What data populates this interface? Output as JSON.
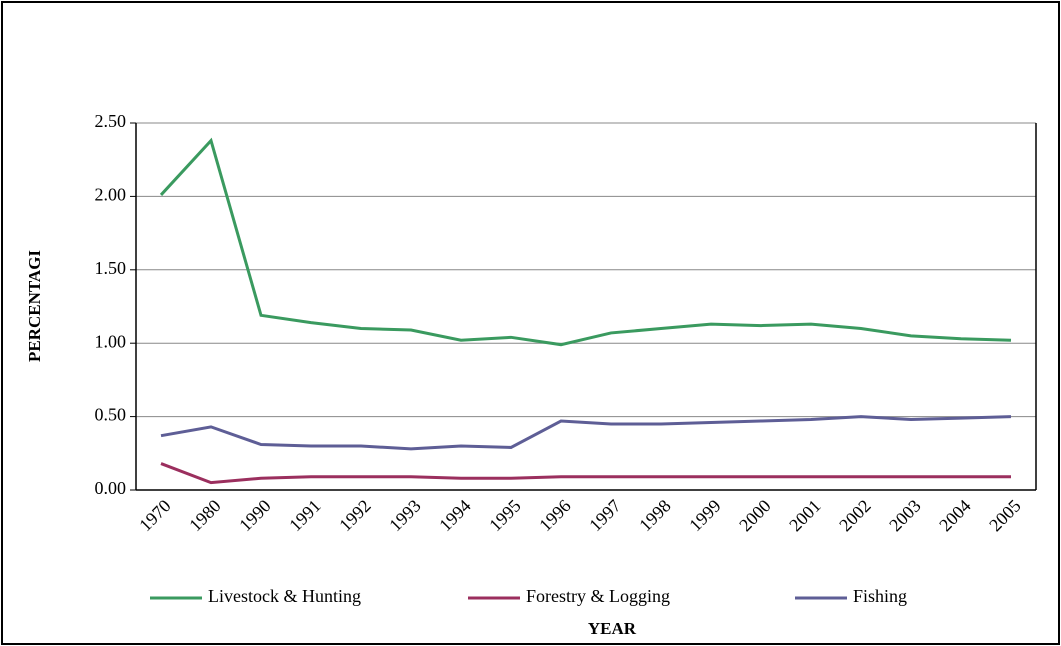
{
  "chart_data": {
    "type": "line",
    "x_label": "YEAR",
    "y_label": "PERCENTAGI",
    "categories": [
      "1970",
      "1980",
      "1990",
      "1991",
      "1992",
      "1993",
      "1994",
      "1995",
      "1996",
      "1997",
      "1998",
      "1999",
      "2000",
      "2001",
      "2002",
      "2003",
      "2004",
      "2005"
    ],
    "series": [
      {
        "name": "Livestock & Hunting",
        "color": "#3a9a5f",
        "values": [
          2.01,
          2.38,
          1.19,
          1.14,
          1.1,
          1.09,
          1.02,
          1.04,
          0.99,
          1.07,
          1.1,
          1.13,
          1.12,
          1.13,
          1.1,
          1.05,
          1.03,
          1.02
        ]
      },
      {
        "name": "Forestry & Logging",
        "color": "#9b2f5e",
        "values": [
          0.18,
          0.05,
          0.08,
          0.09,
          0.09,
          0.09,
          0.08,
          0.08,
          0.09,
          0.09,
          0.09,
          0.09,
          0.09,
          0.09,
          0.09,
          0.09,
          0.09,
          0.09
        ]
      },
      {
        "name": "Fishing",
        "color": "#5e5e96",
        "values": [
          0.37,
          0.43,
          0.31,
          0.3,
          0.3,
          0.28,
          0.3,
          0.29,
          0.47,
          0.45,
          0.45,
          0.46,
          0.47,
          0.48,
          0.5,
          0.48,
          0.49,
          0.5
        ]
      }
    ],
    "ylim": [
      0,
      2.5
    ],
    "yticks": [
      {
        "value": 0,
        "label": "0.00"
      },
      {
        "value": 0.5,
        "label": "0.50"
      },
      {
        "value": 1,
        "label": "1.00"
      },
      {
        "value": 1.5,
        "label": "1.50"
      },
      {
        "value": 2,
        "label": "2.00"
      },
      {
        "value": 2.5,
        "label": "2.50"
      }
    ],
    "grid": true,
    "legend": "bottom"
  }
}
